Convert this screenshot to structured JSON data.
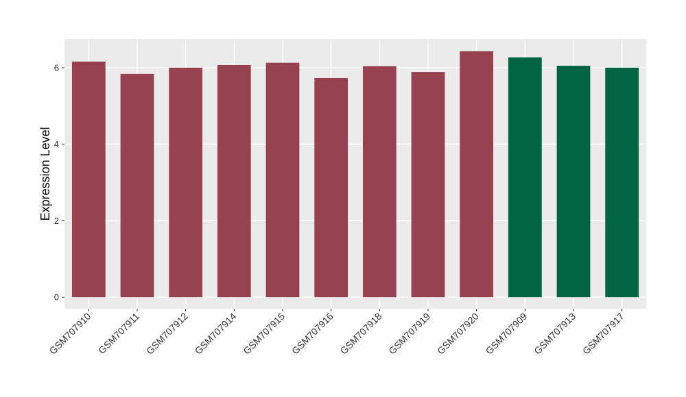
{
  "chart_data": {
    "type": "bar",
    "y_label": "Expression Level",
    "categories": [
      "GSM707910",
      "GSM707911",
      "GSM707912",
      "GSM707914",
      "GSM707915",
      "GSM707916",
      "GSM707918",
      "GSM707919",
      "GSM707920",
      "GSM707909",
      "GSM707913",
      "GSM707917"
    ],
    "values": [
      6.16,
      5.84,
      6.0,
      6.07,
      6.13,
      5.73,
      6.04,
      5.89,
      6.43,
      6.27,
      6.05,
      6.0
    ],
    "colors": [
      "#99424f",
      "#99424f",
      "#99424f",
      "#99424f",
      "#99424f",
      "#99424f",
      "#99424f",
      "#99424f",
      "#99424f",
      "#006341",
      "#006341",
      "#006341"
    ],
    "ylim": [
      -0.3,
      6.75
    ],
    "yticks": [
      0,
      2,
      4,
      6
    ],
    "grid": true
  }
}
